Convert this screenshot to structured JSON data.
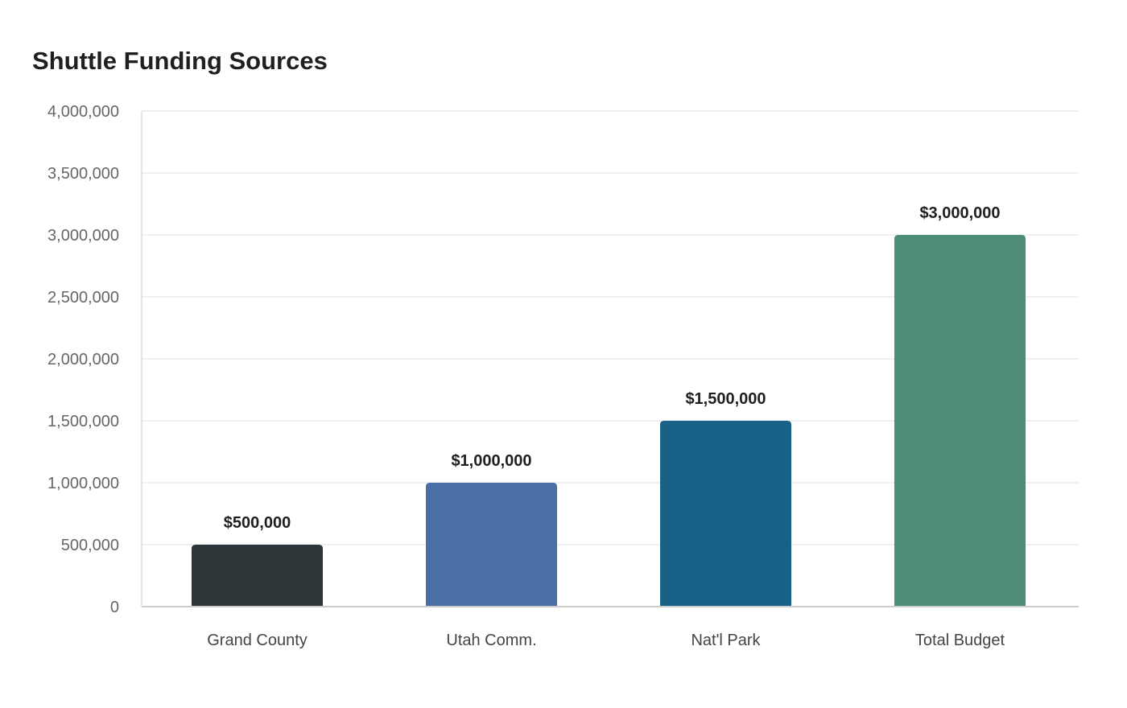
{
  "chart_data": {
    "type": "bar",
    "title": "Shuttle Funding Sources",
    "xlabel": "",
    "ylabel": "",
    "categories": [
      "Grand County",
      "Utah Comm.",
      "Nat'l Park",
      "Total Budget"
    ],
    "values": [
      500000,
      1000000,
      1500000,
      3000000
    ],
    "data_labels": [
      "$500,000",
      "$1,000,000",
      "$1,500,000",
      "$3,000,000"
    ],
    "colors": [
      "#2e3538",
      "#4a6fa5",
      "#186288",
      "#4e8c7a"
    ],
    "ylim": [
      0,
      4000000
    ],
    "yticks": [
      0,
      500000,
      1000000,
      1500000,
      2000000,
      2500000,
      3000000,
      3500000,
      4000000
    ],
    "ytick_labels": [
      "0",
      "500,000",
      "1,000,000",
      "1,500,000",
      "2,000,000",
      "2,500,000",
      "3,000,000",
      "3,500,000",
      "4,000,000"
    ],
    "grid": true,
    "legend": "none"
  }
}
